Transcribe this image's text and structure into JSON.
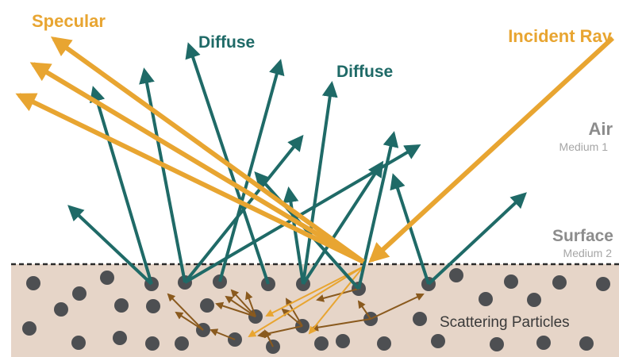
{
  "labels": {
    "specular": "Specular",
    "diffuse_left": "Diffuse",
    "diffuse_right": "Diffuse",
    "incident_ray": "Incident Ray",
    "air": "Air",
    "medium_1": "Medium 1",
    "surface": "Surface",
    "medium_2": "Medium 2",
    "scattering_particles": "Scattering Particles"
  },
  "colors": {
    "orange": "#e8a531",
    "teal": "#1f6a67",
    "brown": "#8a5a1e",
    "particle": "#4d4f52",
    "medium": "#e6d5c8",
    "grey_text": "#8c8c8c",
    "grey_sub": "#a6a6a6"
  }
}
